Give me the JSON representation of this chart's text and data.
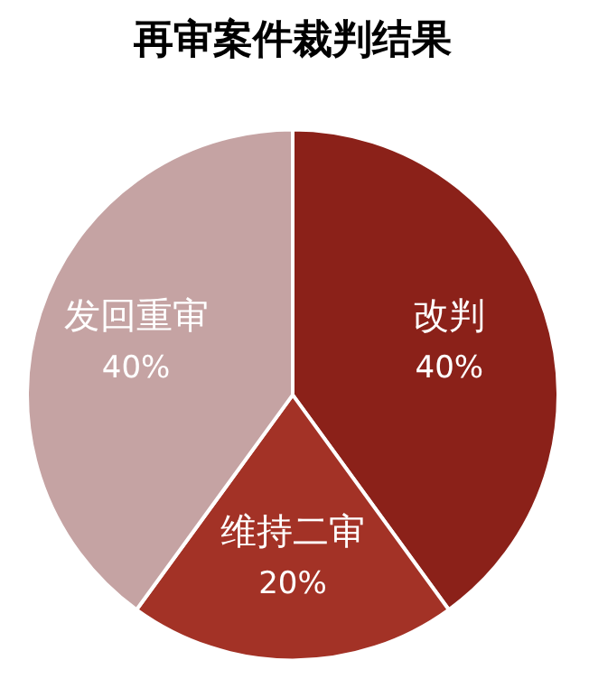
{
  "chart_data": {
    "type": "pie",
    "title": "再审案件裁判结果",
    "categories": [
      "改判",
      "维持二审",
      "发回重审"
    ],
    "values": [
      40,
      20,
      40
    ],
    "value_labels": [
      "40%",
      "20%",
      "40%"
    ],
    "colors": [
      "#8b2119",
      "#a33226",
      "#c5a3a3"
    ],
    "legend": false
  }
}
